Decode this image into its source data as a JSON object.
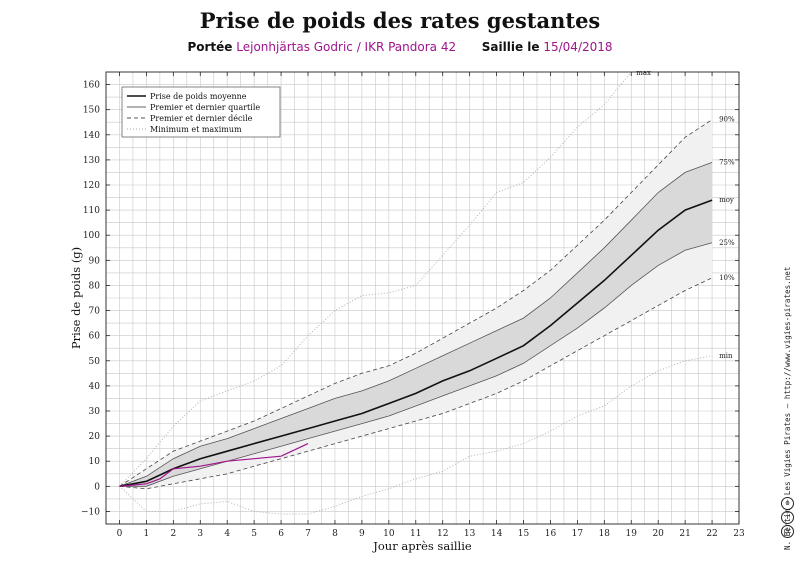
{
  "title": "Prise de poids des rates gestantes",
  "subtitle": {
    "litter_label": "Portée",
    "litter_value": "Lejonhjärtas Godric / IKR Pandora 42",
    "mating_label": "Saillie le",
    "mating_value": "15/04/2018"
  },
  "credit": "N. Bertin – Les Vigies Pirates – http://www.vigies-pirates.net",
  "colors": {
    "mean": "#111111",
    "quartile_band": "#d9d9d9",
    "decile_band": "#f1f1f1",
    "subject": "#a0148c",
    "grid": "#c8c8c8"
  },
  "chart_data": {
    "type": "line",
    "title": "Prise de poids des rates gestantes",
    "xlabel": "Jour après saillie",
    "ylabel": "Prise de poids (g)",
    "xlim": [
      -0.5,
      23
    ],
    "ylim": [
      -15,
      165
    ],
    "x_ticks": [
      0,
      1,
      2,
      3,
      4,
      5,
      6,
      7,
      8,
      9,
      10,
      11,
      12,
      13,
      14,
      15,
      16,
      17,
      18,
      19,
      20,
      21,
      22,
      23
    ],
    "y_ticks": [
      -10,
      0,
      10,
      20,
      30,
      40,
      50,
      60,
      70,
      80,
      90,
      100,
      110,
      120,
      130,
      140,
      150,
      160
    ],
    "grid": true,
    "legend_position": "top-left",
    "x": [
      0,
      1,
      2,
      3,
      4,
      5,
      6,
      7,
      8,
      9,
      10,
      11,
      12,
      13,
      14,
      15,
      16,
      17,
      18,
      19,
      20,
      21,
      22
    ],
    "series": [
      {
        "name": "max",
        "role": "max",
        "values": [
          0,
          11,
          24,
          34,
          38,
          42,
          48,
          60,
          70,
          76,
          77,
          80,
          92,
          104,
          117,
          121,
          131,
          143,
          152,
          165,
          null,
          null,
          null
        ],
        "end_label": "max"
      },
      {
        "name": "90%",
        "role": "p90",
        "values": [
          0,
          7,
          14,
          18,
          22,
          26,
          31,
          36,
          41,
          45,
          48,
          53,
          59,
          65,
          71,
          78,
          86,
          96,
          106,
          117,
          128,
          139,
          146
        ],
        "end_label": "90%"
      },
      {
        "name": "75%",
        "role": "p75",
        "values": [
          0,
          4,
          11,
          16,
          19,
          23,
          27,
          31,
          35,
          38,
          42,
          47,
          52,
          57,
          62,
          67,
          75,
          85,
          95,
          106,
          117,
          125,
          129
        ],
        "end_label": "75%"
      },
      {
        "name": "moy",
        "role": "mean",
        "values": [
          0,
          2,
          7,
          11,
          14,
          17,
          20,
          23,
          26,
          29,
          33,
          37,
          42,
          46,
          51,
          56,
          64,
          73,
          82,
          92,
          102,
          110,
          114
        ],
        "end_label": "moy"
      },
      {
        "name": "25%",
        "role": "p25",
        "values": [
          0,
          0,
          4,
          7,
          10,
          13,
          16,
          19,
          22,
          25,
          28,
          32,
          36,
          40,
          44,
          49,
          56,
          63,
          71,
          80,
          88,
          94,
          97
        ],
        "end_label": "25%"
      },
      {
        "name": "10%",
        "role": "p10",
        "values": [
          0,
          -1,
          1,
          3,
          5,
          8,
          11,
          14,
          17,
          20,
          23,
          26,
          29,
          33,
          37,
          42,
          48,
          54,
          60,
          66,
          72,
          78,
          83
        ],
        "end_label": "10%"
      },
      {
        "name": "min",
        "role": "min",
        "values": [
          0,
          -10,
          -10,
          -7,
          -6,
          -10,
          -11,
          -11,
          -8,
          -4,
          -1,
          3,
          6,
          12,
          14,
          17,
          22,
          28,
          32,
          40,
          46,
          50,
          52
        ],
        "end_label": "min"
      }
    ],
    "subject": {
      "x": [
        0,
        1,
        1.5,
        2,
        3,
        4,
        5,
        6,
        7
      ],
      "values": [
        0,
        1,
        3,
        7,
        8,
        10,
        11,
        12,
        17
      ]
    },
    "legend": [
      {
        "label": "Prise de poids moyenne",
        "style": "mean"
      },
      {
        "label": "Premier et dernier quartile",
        "style": "quartile"
      },
      {
        "label": "Premier et dernier décile",
        "style": "decile"
      },
      {
        "label": "Minimum et maximum",
        "style": "minmax"
      }
    ]
  }
}
